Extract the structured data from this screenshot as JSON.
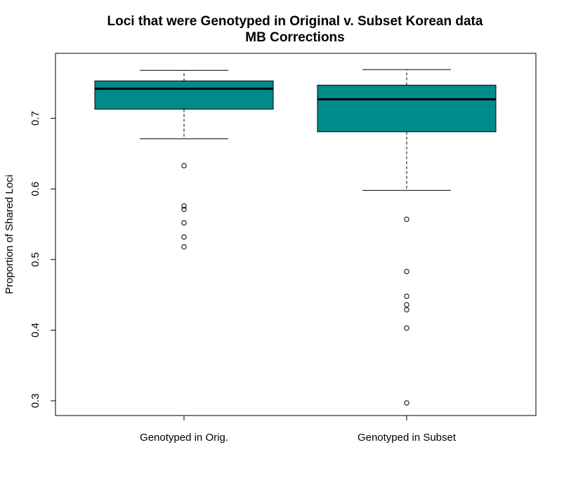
{
  "chart_data": {
    "type": "box",
    "title": "Loci that were Genotyped in Original v. Subset Korean data",
    "subtitle": "MB Corrections",
    "xlabel": "",
    "ylabel": "Proportion of Shared Loci",
    "ylim": [
      0.28,
      0.78
    ],
    "yticks": [
      0.3,
      0.4,
      0.5,
      0.6,
      0.7
    ],
    "ytick_labels": [
      "0.3",
      "0.4",
      "0.5",
      "0.6",
      "0.7"
    ],
    "grid": false,
    "legend": "none",
    "categories": [
      "Genotyped in Orig.",
      "Genotyped in Subset"
    ],
    "box_fill": "#008B8B",
    "boxes": [
      {
        "category": "Genotyped in Orig.",
        "whisker_low": 0.671,
        "q1": 0.713,
        "median": 0.742,
        "q3": 0.753,
        "whisker_high": 0.768,
        "outliers": [
          0.633,
          0.576,
          0.571,
          0.552,
          0.532,
          0.518
        ]
      },
      {
        "category": "Genotyped in Subset",
        "whisker_low": 0.598,
        "q1": 0.681,
        "median": 0.727,
        "q3": 0.747,
        "whisker_high": 0.769,
        "outliers": [
          0.557,
          0.483,
          0.448,
          0.436,
          0.429,
          0.403,
          0.297
        ]
      }
    ]
  }
}
